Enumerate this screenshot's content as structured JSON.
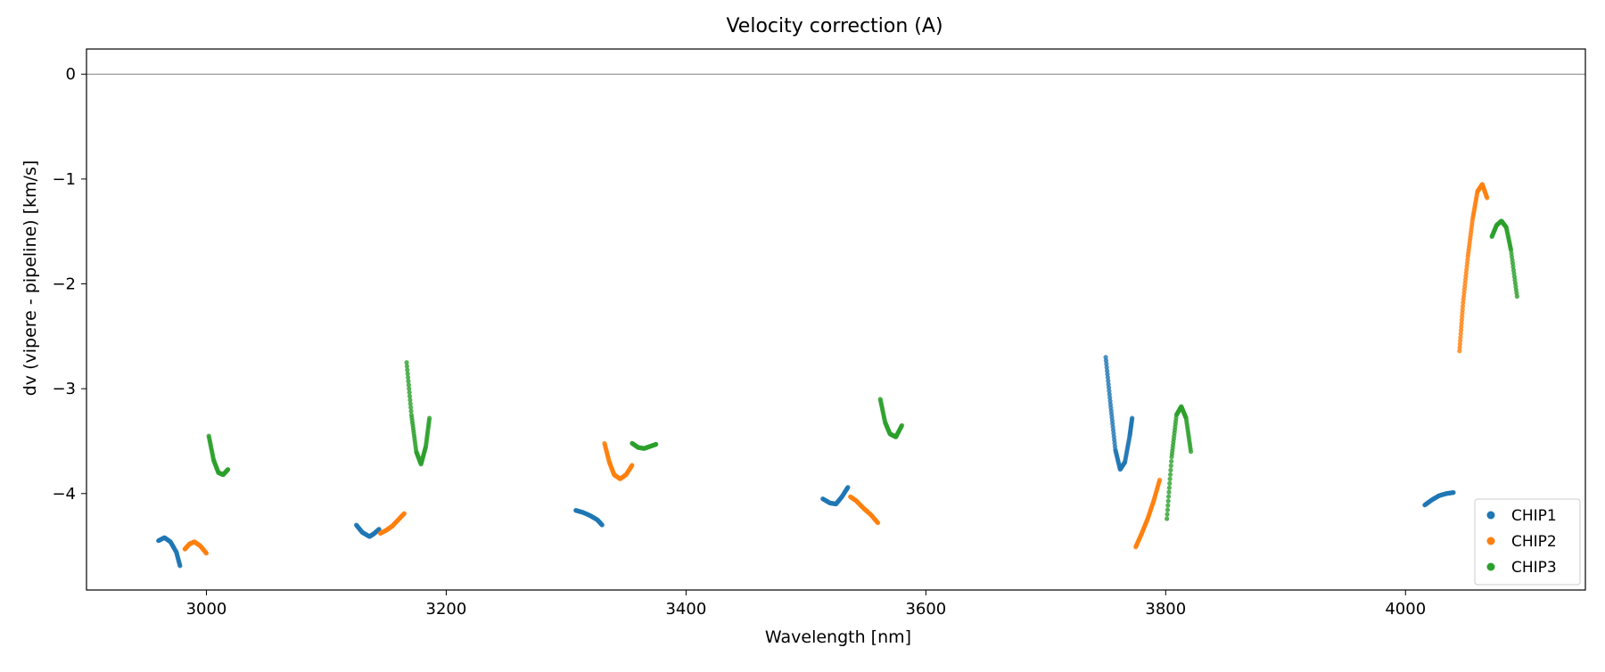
{
  "chart_data": {
    "type": "scatter",
    "title": "Velocity correction (A)",
    "xlabel": "Wavelength [nm]",
    "ylabel": "dv (vipere - pipeline) [km/s]",
    "xlim": [
      2900,
      4150
    ],
    "ylim": [
      -4.92,
      0.24
    ],
    "xticks": [
      3000,
      3200,
      3400,
      3600,
      3800,
      4000
    ],
    "yticks": [
      0,
      -1,
      -2,
      -3,
      -4
    ],
    "xtick_labels": [
      "3000",
      "3200",
      "3400",
      "3600",
      "3800",
      "4000"
    ],
    "ytick_labels": [
      "0",
      "−1",
      "−2",
      "−3",
      "−4"
    ],
    "hline": 0,
    "legend_position": "lower-right",
    "series": [
      {
        "name": "CHIP1",
        "color": "#1f77b4",
        "segments": [
          {
            "x": [
              2960,
              2965,
              2970,
              2975,
              2978
            ],
            "y": [
              -4.45,
              -4.42,
              -4.46,
              -4.56,
              -4.69
            ]
          },
          {
            "x": [
              3125,
              3130,
              3136,
              3140,
              3144
            ],
            "y": [
              -4.3,
              -4.37,
              -4.41,
              -4.38,
              -4.34
            ]
          },
          {
            "x": [
              3308,
              3314,
              3320,
              3326,
              3330
            ],
            "y": [
              -4.16,
              -4.18,
              -4.21,
              -4.25,
              -4.3
            ]
          },
          {
            "x": [
              3514,
              3520,
              3525,
              3530,
              3535
            ],
            "y": [
              -4.05,
              -4.09,
              -4.1,
              -4.03,
              -3.94
            ]
          },
          {
            "x": [
              3750,
              3754,
              3758,
              3762,
              3766,
              3770,
              3772
            ],
            "y": [
              -2.7,
              -3.15,
              -3.58,
              -3.77,
              -3.7,
              -3.45,
              -3.28
            ]
          },
          {
            "x": [
              4016,
              4022,
              4028,
              4034,
              4040
            ],
            "y": [
              -4.11,
              -4.06,
              -4.02,
              -4.0,
              -3.99
            ]
          }
        ]
      },
      {
        "name": "CHIP2",
        "color": "#ff7f0e",
        "segments": [
          {
            "x": [
              2982,
              2986,
              2990,
              2995,
              3000
            ],
            "y": [
              -4.53,
              -4.48,
              -4.46,
              -4.5,
              -4.57
            ]
          },
          {
            "x": [
              3145,
              3150,
              3155,
              3160,
              3165
            ],
            "y": [
              -4.38,
              -4.35,
              -4.31,
              -4.25,
              -4.19
            ]
          },
          {
            "x": [
              3332,
              3336,
              3340,
              3345,
              3350,
              3355
            ],
            "y": [
              -3.52,
              -3.7,
              -3.82,
              -3.86,
              -3.82,
              -3.73
            ]
          },
          {
            "x": [
              3537,
              3542,
              3548,
              3554,
              3560
            ],
            "y": [
              -4.03,
              -4.07,
              -4.14,
              -4.2,
              -4.28
            ]
          },
          {
            "x": [
              3775,
              3780,
              3785,
              3790,
              3795
            ],
            "y": [
              -4.51,
              -4.38,
              -4.24,
              -4.07,
              -3.87
            ]
          },
          {
            "x": [
              4045,
              4048,
              4052,
              4056,
              4060,
              4064,
              4068
            ],
            "y": [
              -2.64,
              -2.18,
              -1.74,
              -1.38,
              -1.12,
              -1.05,
              -1.18
            ]
          }
        ]
      },
      {
        "name": "CHIP3",
        "color": "#2ca02c",
        "segments": [
          {
            "x": [
              3002,
              3006,
              3010,
              3014,
              3018
            ],
            "y": [
              -3.45,
              -3.68,
              -3.8,
              -3.82,
              -3.77
            ]
          },
          {
            "x": [
              3167,
              3171,
              3175,
              3179,
              3183,
              3186
            ],
            "y": [
              -2.75,
              -3.25,
              -3.6,
              -3.72,
              -3.55,
              -3.28
            ]
          },
          {
            "x": [
              3355,
              3360,
              3365,
              3370,
              3375
            ],
            "y": [
              -3.52,
              -3.56,
              -3.57,
              -3.55,
              -3.53
            ]
          },
          {
            "x": [
              3562,
              3566,
              3570,
              3575,
              3580
            ],
            "y": [
              -3.1,
              -3.32,
              -3.43,
              -3.46,
              -3.35
            ]
          },
          {
            "x": [
              3801,
              3805,
              3809,
              3813,
              3817,
              3821
            ],
            "y": [
              -4.24,
              -3.65,
              -3.25,
              -3.17,
              -3.28,
              -3.6
            ]
          },
          {
            "x": [
              4072,
              4076,
              4080,
              4084,
              4088,
              4093
            ],
            "y": [
              -1.55,
              -1.44,
              -1.4,
              -1.46,
              -1.68,
              -2.12
            ]
          }
        ]
      }
    ]
  }
}
